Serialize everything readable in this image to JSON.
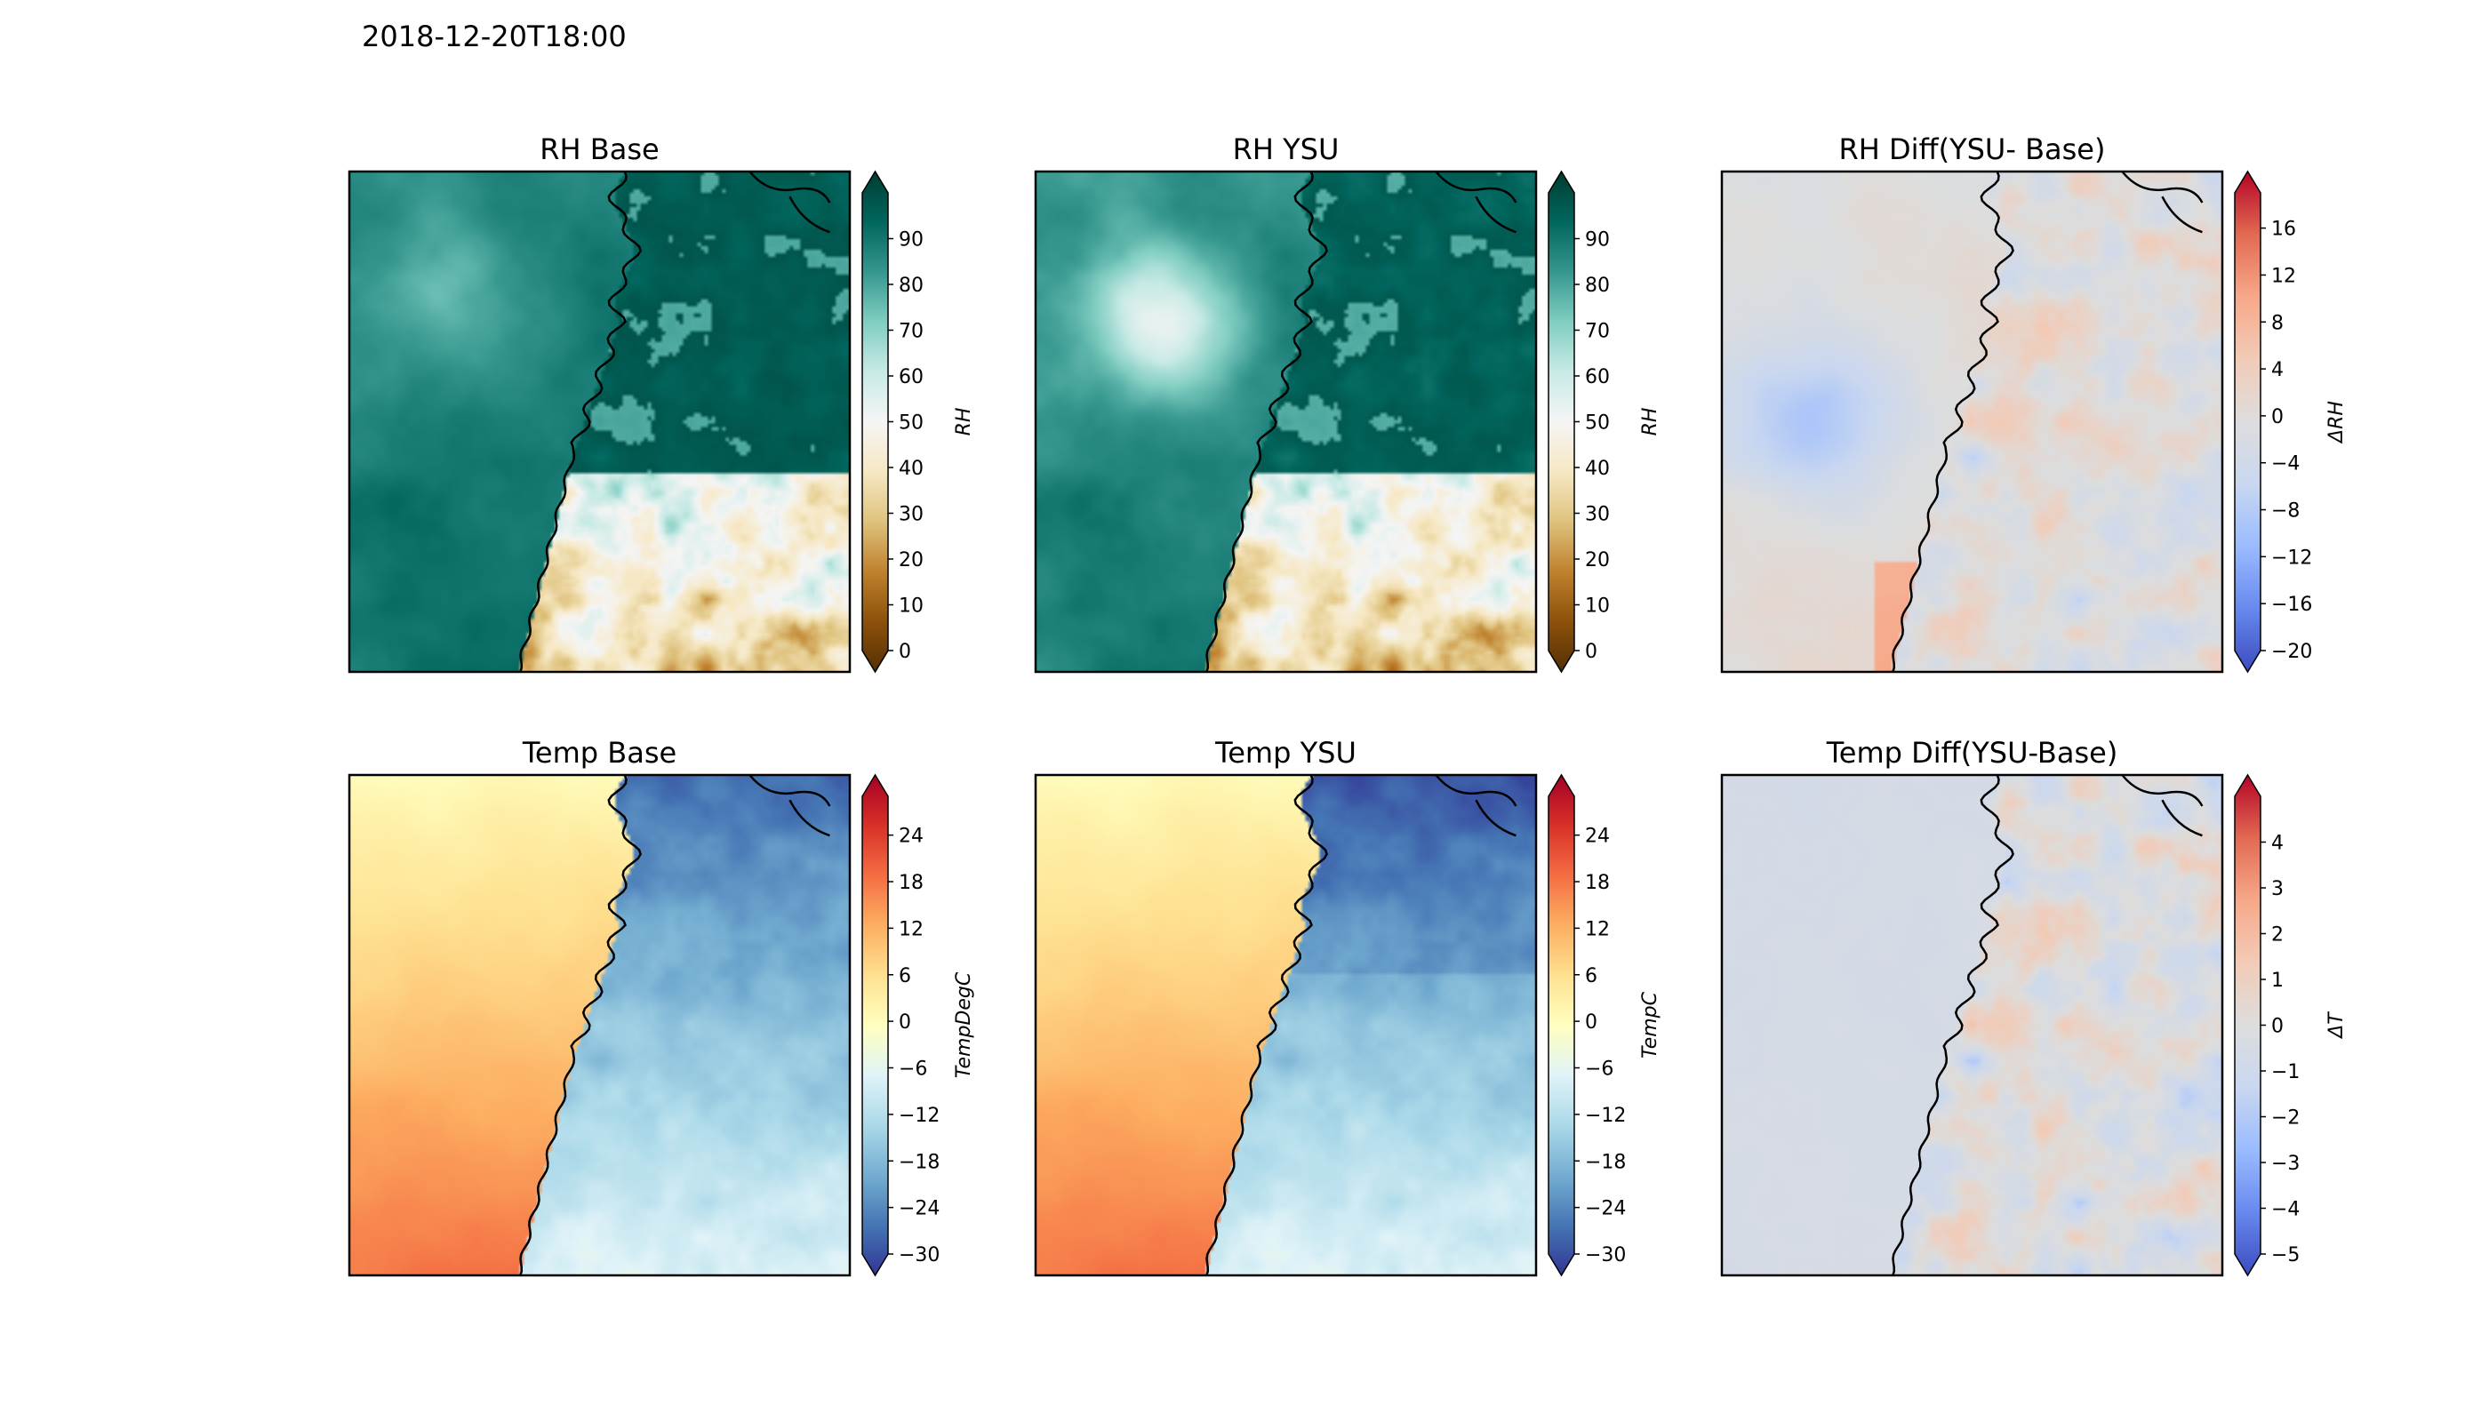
{
  "figure": {
    "suptitle": "2018-12-20T18:00"
  },
  "colormaps": {
    "BrBG": [
      "#543005",
      "#8c510a",
      "#bf812d",
      "#dfc27d",
      "#f6e8c3",
      "#f5f5f5",
      "#c7eae5",
      "#80cdc1",
      "#35978f",
      "#01665e",
      "#003c30"
    ],
    "RdYlBu_r": [
      "#313695",
      "#4575b4",
      "#74add1",
      "#abd9e9",
      "#e0f3f8",
      "#ffffbf",
      "#fee090",
      "#fdae61",
      "#f46d43",
      "#d73027",
      "#a50026"
    ],
    "coolwarm": [
      "#3b4cc0",
      "#6788ee",
      "#9abbff",
      "#c9d7f0",
      "#dddddd",
      "#f2cbb7",
      "#f7a889",
      "#e26952",
      "#b40426"
    ]
  },
  "panels": [
    {
      "id": "rh-base",
      "title": "RH Base",
      "field": "rh",
      "cmap": "BrBG",
      "vmin": 0,
      "vmax": 100,
      "ticks": [
        "90",
        "80",
        "70",
        "60",
        "50",
        "40",
        "30",
        "20",
        "10",
        "0"
      ],
      "tick_values": [
        90,
        80,
        70,
        60,
        50,
        40,
        30,
        20,
        10,
        0
      ],
      "cbar_label": "RH"
    },
    {
      "id": "rh-ysu",
      "title": "RH YSU",
      "field": "rh_ysu",
      "cmap": "BrBG",
      "vmin": 0,
      "vmax": 100,
      "ticks": [
        "90",
        "80",
        "70",
        "60",
        "50",
        "40",
        "30",
        "20",
        "10",
        "0"
      ],
      "tick_values": [
        90,
        80,
        70,
        60,
        50,
        40,
        30,
        20,
        10,
        0
      ],
      "cbar_label": "RH"
    },
    {
      "id": "rh-diff",
      "title": "RH Diff(YSU- Base)",
      "field": "rh_diff",
      "cmap": "coolwarm",
      "vmin": -20,
      "vmax": 19,
      "ticks": [
        "16",
        "12",
        "8",
        "4",
        "0",
        "−4",
        "−8",
        "−12",
        "−16",
        "−20"
      ],
      "tick_values": [
        16,
        12,
        8,
        4,
        0,
        -4,
        -8,
        -12,
        -16,
        -20
      ],
      "cbar_label": "ΔRH"
    },
    {
      "id": "temp-base",
      "title": "Temp Base",
      "field": "temp",
      "cmap": "RdYlBu_r",
      "vmin": -30,
      "vmax": 29,
      "ticks": [
        "24",
        "18",
        "12",
        "6",
        "0",
        "−6",
        "−12",
        "−18",
        "−24",
        "−30"
      ],
      "tick_values": [
        24,
        18,
        12,
        6,
        0,
        -6,
        -12,
        -18,
        -24,
        -30
      ],
      "cbar_label": "TempDegC"
    },
    {
      "id": "temp-ysu",
      "title": "Temp YSU",
      "field": "temp_ysu",
      "cmap": "RdYlBu_r",
      "vmin": -30,
      "vmax": 29,
      "ticks": [
        "24",
        "18",
        "12",
        "6",
        "0",
        "−6",
        "−12",
        "−18",
        "−24",
        "−30"
      ],
      "tick_values": [
        24,
        18,
        12,
        6,
        0,
        -6,
        -12,
        -18,
        -24,
        -30
      ],
      "cbar_label": "TempC"
    },
    {
      "id": "temp-diff",
      "title": "Temp Diff(YSU-Base)",
      "field": "temp_diff",
      "cmap": "coolwarm",
      "vmin": -5,
      "vmax": 5,
      "ticks": [
        "4",
        "3",
        "2",
        "1",
        "0",
        "−1",
        "−2",
        "−3",
        "−4",
        "−5"
      ],
      "tick_values": [
        4,
        3,
        2,
        1,
        0,
        -1,
        -2,
        -3,
        -4,
        -5
      ],
      "cbar_label": "ΔT"
    }
  ]
}
